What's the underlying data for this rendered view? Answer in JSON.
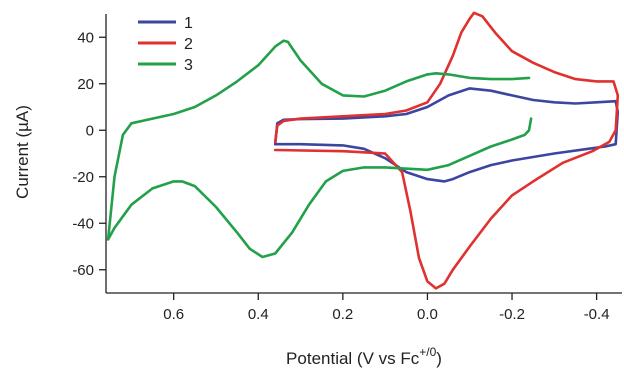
{
  "chart_data": {
    "type": "line",
    "title": "",
    "xlabel_main": "Potential (V vs Fc",
    "xlabel_sup": "+/0",
    "xlabel_close": ")",
    "ylabel": "Current (µA)",
    "x_reversed": true,
    "xlim": [
      0.76,
      -0.46
    ],
    "ylim": [
      -70,
      50
    ],
    "x_ticks": [
      0.6,
      0.4,
      0.2,
      0.0,
      -0.2,
      -0.4
    ],
    "x_tick_labels": [
      "0.6",
      "0.4",
      "0.2",
      "0.0",
      "-0.2",
      "-0.4"
    ],
    "y_ticks": [
      40,
      20,
      0,
      -20,
      -40,
      -60
    ],
    "y_tick_labels": [
      "40",
      "20",
      "0",
      "-20",
      "-40",
      "-60"
    ],
    "grid": false,
    "legend_position": "top-left",
    "series": [
      {
        "name": "1",
        "color": "#3c46a0",
        "points": [
          [
            0.36,
            -6
          ],
          [
            0.355,
            3
          ],
          [
            0.34,
            4.5
          ],
          [
            0.3,
            4.8
          ],
          [
            0.2,
            5
          ],
          [
            0.1,
            6
          ],
          [
            0.05,
            7
          ],
          [
            0.0,
            10
          ],
          [
            -0.05,
            15
          ],
          [
            -0.1,
            18
          ],
          [
            -0.15,
            17
          ],
          [
            -0.2,
            15
          ],
          [
            -0.25,
            13
          ],
          [
            -0.3,
            12
          ],
          [
            -0.35,
            11.5
          ],
          [
            -0.4,
            12
          ],
          [
            -0.445,
            12.5
          ],
          [
            -0.45,
            8
          ],
          [
            -0.445,
            -6
          ],
          [
            -0.42,
            -7
          ],
          [
            -0.38,
            -8
          ],
          [
            -0.3,
            -10
          ],
          [
            -0.2,
            -13
          ],
          [
            -0.15,
            -15
          ],
          [
            -0.1,
            -18
          ],
          [
            -0.06,
            -21
          ],
          [
            -0.04,
            -22
          ],
          [
            0.0,
            -21
          ],
          [
            0.05,
            -18
          ],
          [
            0.1,
            -12
          ],
          [
            0.15,
            -8
          ],
          [
            0.2,
            -6.5
          ],
          [
            0.3,
            -6
          ],
          [
            0.36,
            -6
          ]
        ]
      },
      {
        "name": "2",
        "color": "#e03030",
        "points": [
          [
            0.36,
            -5
          ],
          [
            0.355,
            2
          ],
          [
            0.34,
            4
          ],
          [
            0.3,
            5
          ],
          [
            0.2,
            6
          ],
          [
            0.1,
            7
          ],
          [
            0.05,
            8.5
          ],
          [
            0.0,
            12
          ],
          [
            -0.03,
            20
          ],
          [
            -0.06,
            32
          ],
          [
            -0.08,
            42
          ],
          [
            -0.1,
            48
          ],
          [
            -0.11,
            50.5
          ],
          [
            -0.13,
            49
          ],
          [
            -0.16,
            42
          ],
          [
            -0.2,
            34
          ],
          [
            -0.25,
            29
          ],
          [
            -0.3,
            25
          ],
          [
            -0.35,
            22
          ],
          [
            -0.4,
            21
          ],
          [
            -0.44,
            21
          ],
          [
            -0.45,
            15
          ],
          [
            -0.445,
            0
          ],
          [
            -0.43,
            -5
          ],
          [
            -0.39,
            -9
          ],
          [
            -0.32,
            -14
          ],
          [
            -0.25,
            -22
          ],
          [
            -0.2,
            -28
          ],
          [
            -0.15,
            -38
          ],
          [
            -0.1,
            -50
          ],
          [
            -0.06,
            -60
          ],
          [
            -0.04,
            -66
          ],
          [
            -0.02,
            -68
          ],
          [
            0.0,
            -65
          ],
          [
            0.02,
            -55
          ],
          [
            0.04,
            -35
          ],
          [
            0.06,
            -18
          ],
          [
            0.1,
            -10
          ],
          [
            0.2,
            -9
          ],
          [
            0.36,
            -8.5
          ]
        ]
      },
      {
        "name": "3",
        "color": "#22a04a",
        "points": [
          [
            -0.24,
            22.5
          ],
          [
            -0.2,
            22
          ],
          [
            -0.15,
            22
          ],
          [
            -0.1,
            22.5
          ],
          [
            -0.05,
            24
          ],
          [
            -0.02,
            24.5
          ],
          [
            0.0,
            24
          ],
          [
            0.05,
            21
          ],
          [
            0.1,
            17
          ],
          [
            0.15,
            14.5
          ],
          [
            0.2,
            15
          ],
          [
            0.25,
            20
          ],
          [
            0.3,
            30
          ],
          [
            0.33,
            38
          ],
          [
            0.34,
            38.5
          ],
          [
            0.36,
            36
          ],
          [
            0.4,
            28
          ],
          [
            0.45,
            21
          ],
          [
            0.5,
            15
          ],
          [
            0.55,
            10
          ],
          [
            0.6,
            7
          ],
          [
            0.65,
            5
          ],
          [
            0.7,
            3
          ],
          [
            0.72,
            -2
          ],
          [
            0.74,
            -20
          ],
          [
            0.755,
            -47
          ],
          [
            0.74,
            -42
          ],
          [
            0.7,
            -32
          ],
          [
            0.65,
            -25
          ],
          [
            0.6,
            -22
          ],
          [
            0.58,
            -22
          ],
          [
            0.55,
            -24
          ],
          [
            0.5,
            -33
          ],
          [
            0.45,
            -44
          ],
          [
            0.42,
            -51
          ],
          [
            0.39,
            -54.5
          ],
          [
            0.36,
            -53
          ],
          [
            0.32,
            -44
          ],
          [
            0.28,
            -32
          ],
          [
            0.24,
            -22
          ],
          [
            0.2,
            -17.5
          ],
          [
            0.15,
            -16
          ],
          [
            0.1,
            -16
          ],
          [
            0.0,
            -17
          ],
          [
            -0.05,
            -15
          ],
          [
            -0.1,
            -11
          ],
          [
            -0.15,
            -7
          ],
          [
            -0.2,
            -4
          ],
          [
            -0.23,
            -2
          ],
          [
            -0.24,
            0
          ],
          [
            -0.245,
            5
          ]
        ]
      }
    ]
  }
}
